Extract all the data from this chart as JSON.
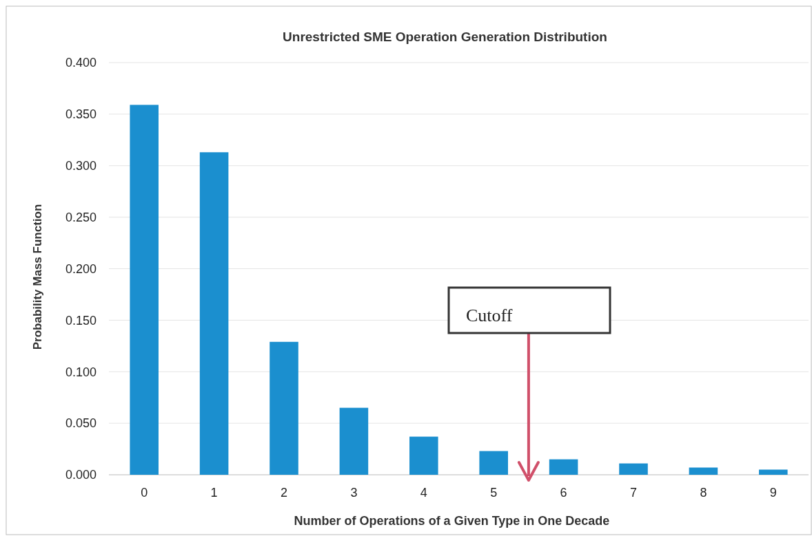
{
  "chart_data": {
    "type": "bar",
    "title": "Unrestricted SME Operation Generation Distribution",
    "xlabel": "Number of Operations of a Given Type in One Decade",
    "ylabel": "Probability Mass Function",
    "categories": [
      "0",
      "1",
      "2",
      "3",
      "4",
      "5",
      "6",
      "7",
      "8",
      "9"
    ],
    "values": [
      0.359,
      0.313,
      0.129,
      0.065,
      0.037,
      0.023,
      0.015,
      0.011,
      0.007,
      0.005
    ],
    "color": "#1b8fcf",
    "ylim": [
      0,
      0.4
    ],
    "yticks": [
      {
        "value": 0,
        "label": "0.000"
      },
      {
        "value": 0.05,
        "label": "0.050"
      },
      {
        "value": 0.1,
        "label": "0.100"
      },
      {
        "value": 0.15,
        "label": "0.150"
      },
      {
        "value": 0.2,
        "label": "0.200"
      },
      {
        "value": 0.25,
        "label": "0.250"
      },
      {
        "value": 0.3,
        "label": "0.300"
      },
      {
        "value": 0.35,
        "label": "0.350"
      },
      {
        "value": 0.4,
        "label": "0.400"
      }
    ],
    "grid": "y",
    "annotations": [
      "Cutoff"
    ]
  }
}
